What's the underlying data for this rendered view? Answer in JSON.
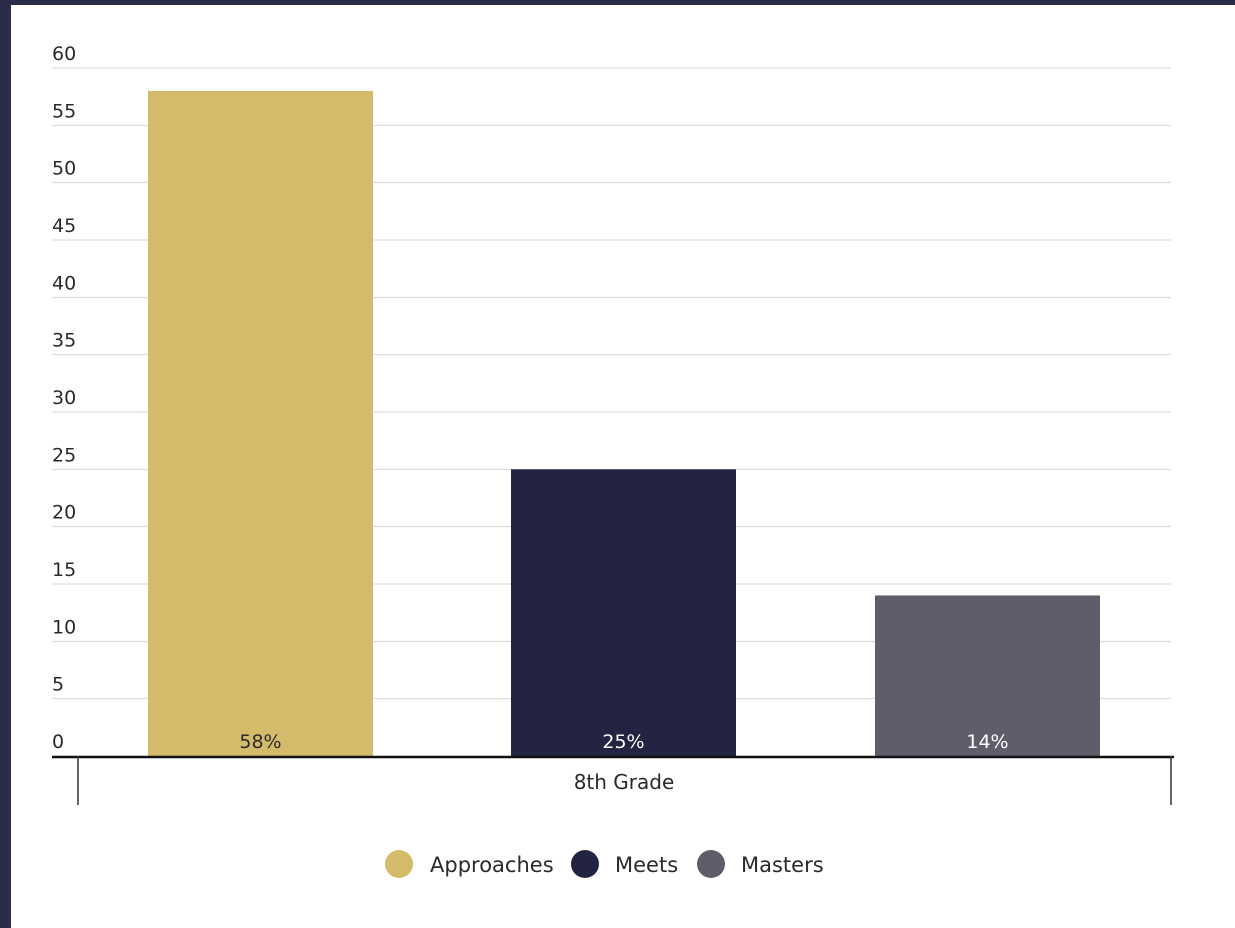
{
  "chart_data": {
    "type": "bar",
    "categories": [
      "8th Grade"
    ],
    "series": [
      {
        "name": "Approaches",
        "values": [
          58
        ],
        "label": "58%",
        "color": "#d4bb6b",
        "label_color": "#2a2a2a"
      },
      {
        "name": "Meets",
        "values": [
          25
        ],
        "label": "25%",
        "color": "#222441",
        "label_color": "#ffffff"
      },
      {
        "name": "Masters",
        "values": [
          14
        ],
        "label": "14%",
        "color": "#5e5d6b",
        "label_color": "#ffffff"
      }
    ],
    "yticks": [
      "0",
      "5",
      "10",
      "15",
      "20",
      "25",
      "30",
      "35",
      "40",
      "45",
      "50",
      "55",
      "60"
    ],
    "ylim": [
      0,
      60
    ],
    "grid": true,
    "legend_position": "bottom-center"
  }
}
